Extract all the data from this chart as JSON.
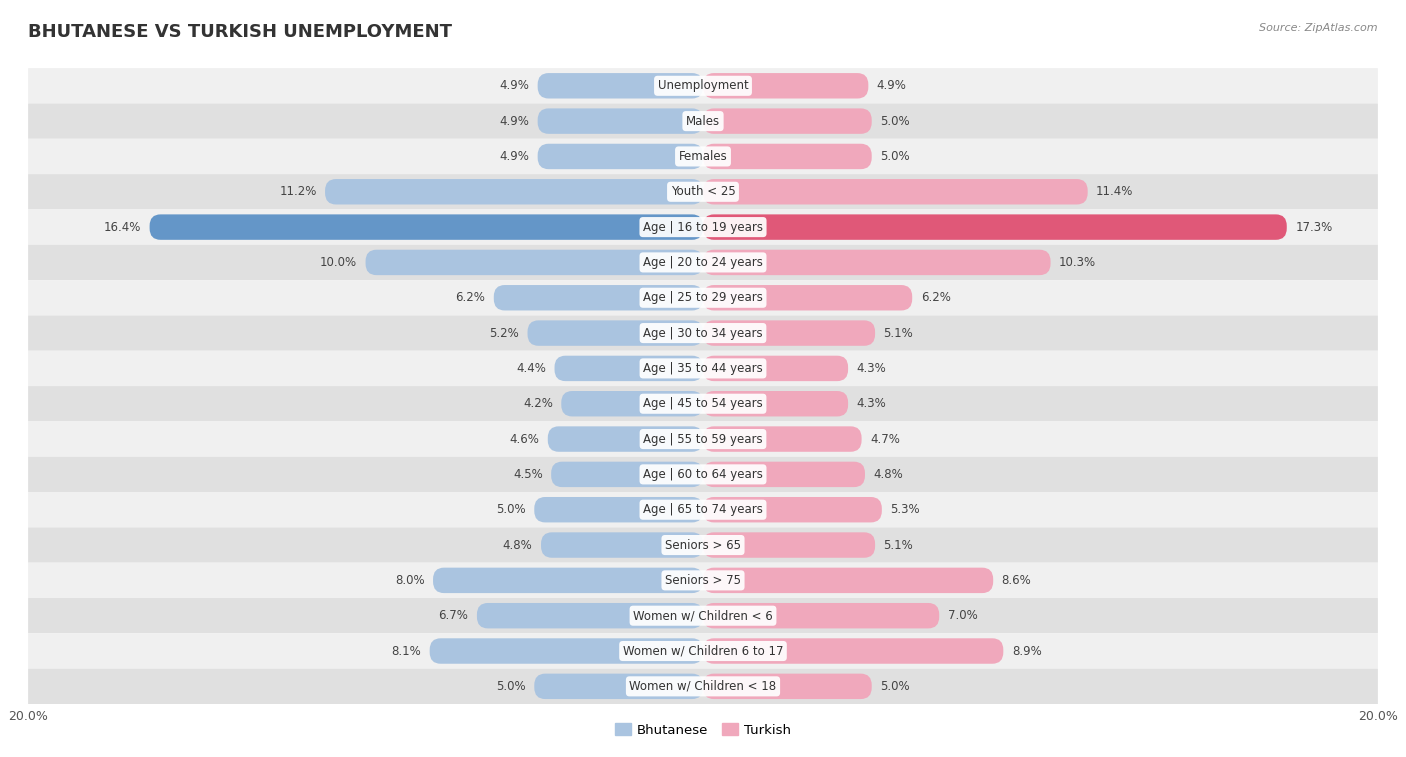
{
  "title": "BHUTANESE VS TURKISH UNEMPLOYMENT",
  "source": "Source: ZipAtlas.com",
  "categories": [
    "Unemployment",
    "Males",
    "Females",
    "Youth < 25",
    "Age | 16 to 19 years",
    "Age | 20 to 24 years",
    "Age | 25 to 29 years",
    "Age | 30 to 34 years",
    "Age | 35 to 44 years",
    "Age | 45 to 54 years",
    "Age | 55 to 59 years",
    "Age | 60 to 64 years",
    "Age | 65 to 74 years",
    "Seniors > 65",
    "Seniors > 75",
    "Women w/ Children < 6",
    "Women w/ Children 6 to 17",
    "Women w/ Children < 18"
  ],
  "bhutanese": [
    4.9,
    4.9,
    4.9,
    11.2,
    16.4,
    10.0,
    6.2,
    5.2,
    4.4,
    4.2,
    4.6,
    4.5,
    5.0,
    4.8,
    8.0,
    6.7,
    8.1,
    5.0
  ],
  "turkish": [
    4.9,
    5.0,
    5.0,
    11.4,
    17.3,
    10.3,
    6.2,
    5.1,
    4.3,
    4.3,
    4.7,
    4.8,
    5.3,
    5.1,
    8.6,
    7.0,
    8.9,
    5.0
  ],
  "bhutanese_color": "#aac4e0",
  "turkish_color": "#f0a8bc",
  "highlight_bhutanese_color": "#6496c8",
  "highlight_turkish_color": "#e05878",
  "row_color_light": "#f0f0f0",
  "row_color_dark": "#e0e0e0",
  "max_val": 20.0,
  "bar_height": 0.72,
  "legend_bhutanese": "Bhutanese",
  "legend_turkish": "Turkish",
  "label_fontsize": 8.5,
  "title_fontsize": 13,
  "source_fontsize": 8
}
